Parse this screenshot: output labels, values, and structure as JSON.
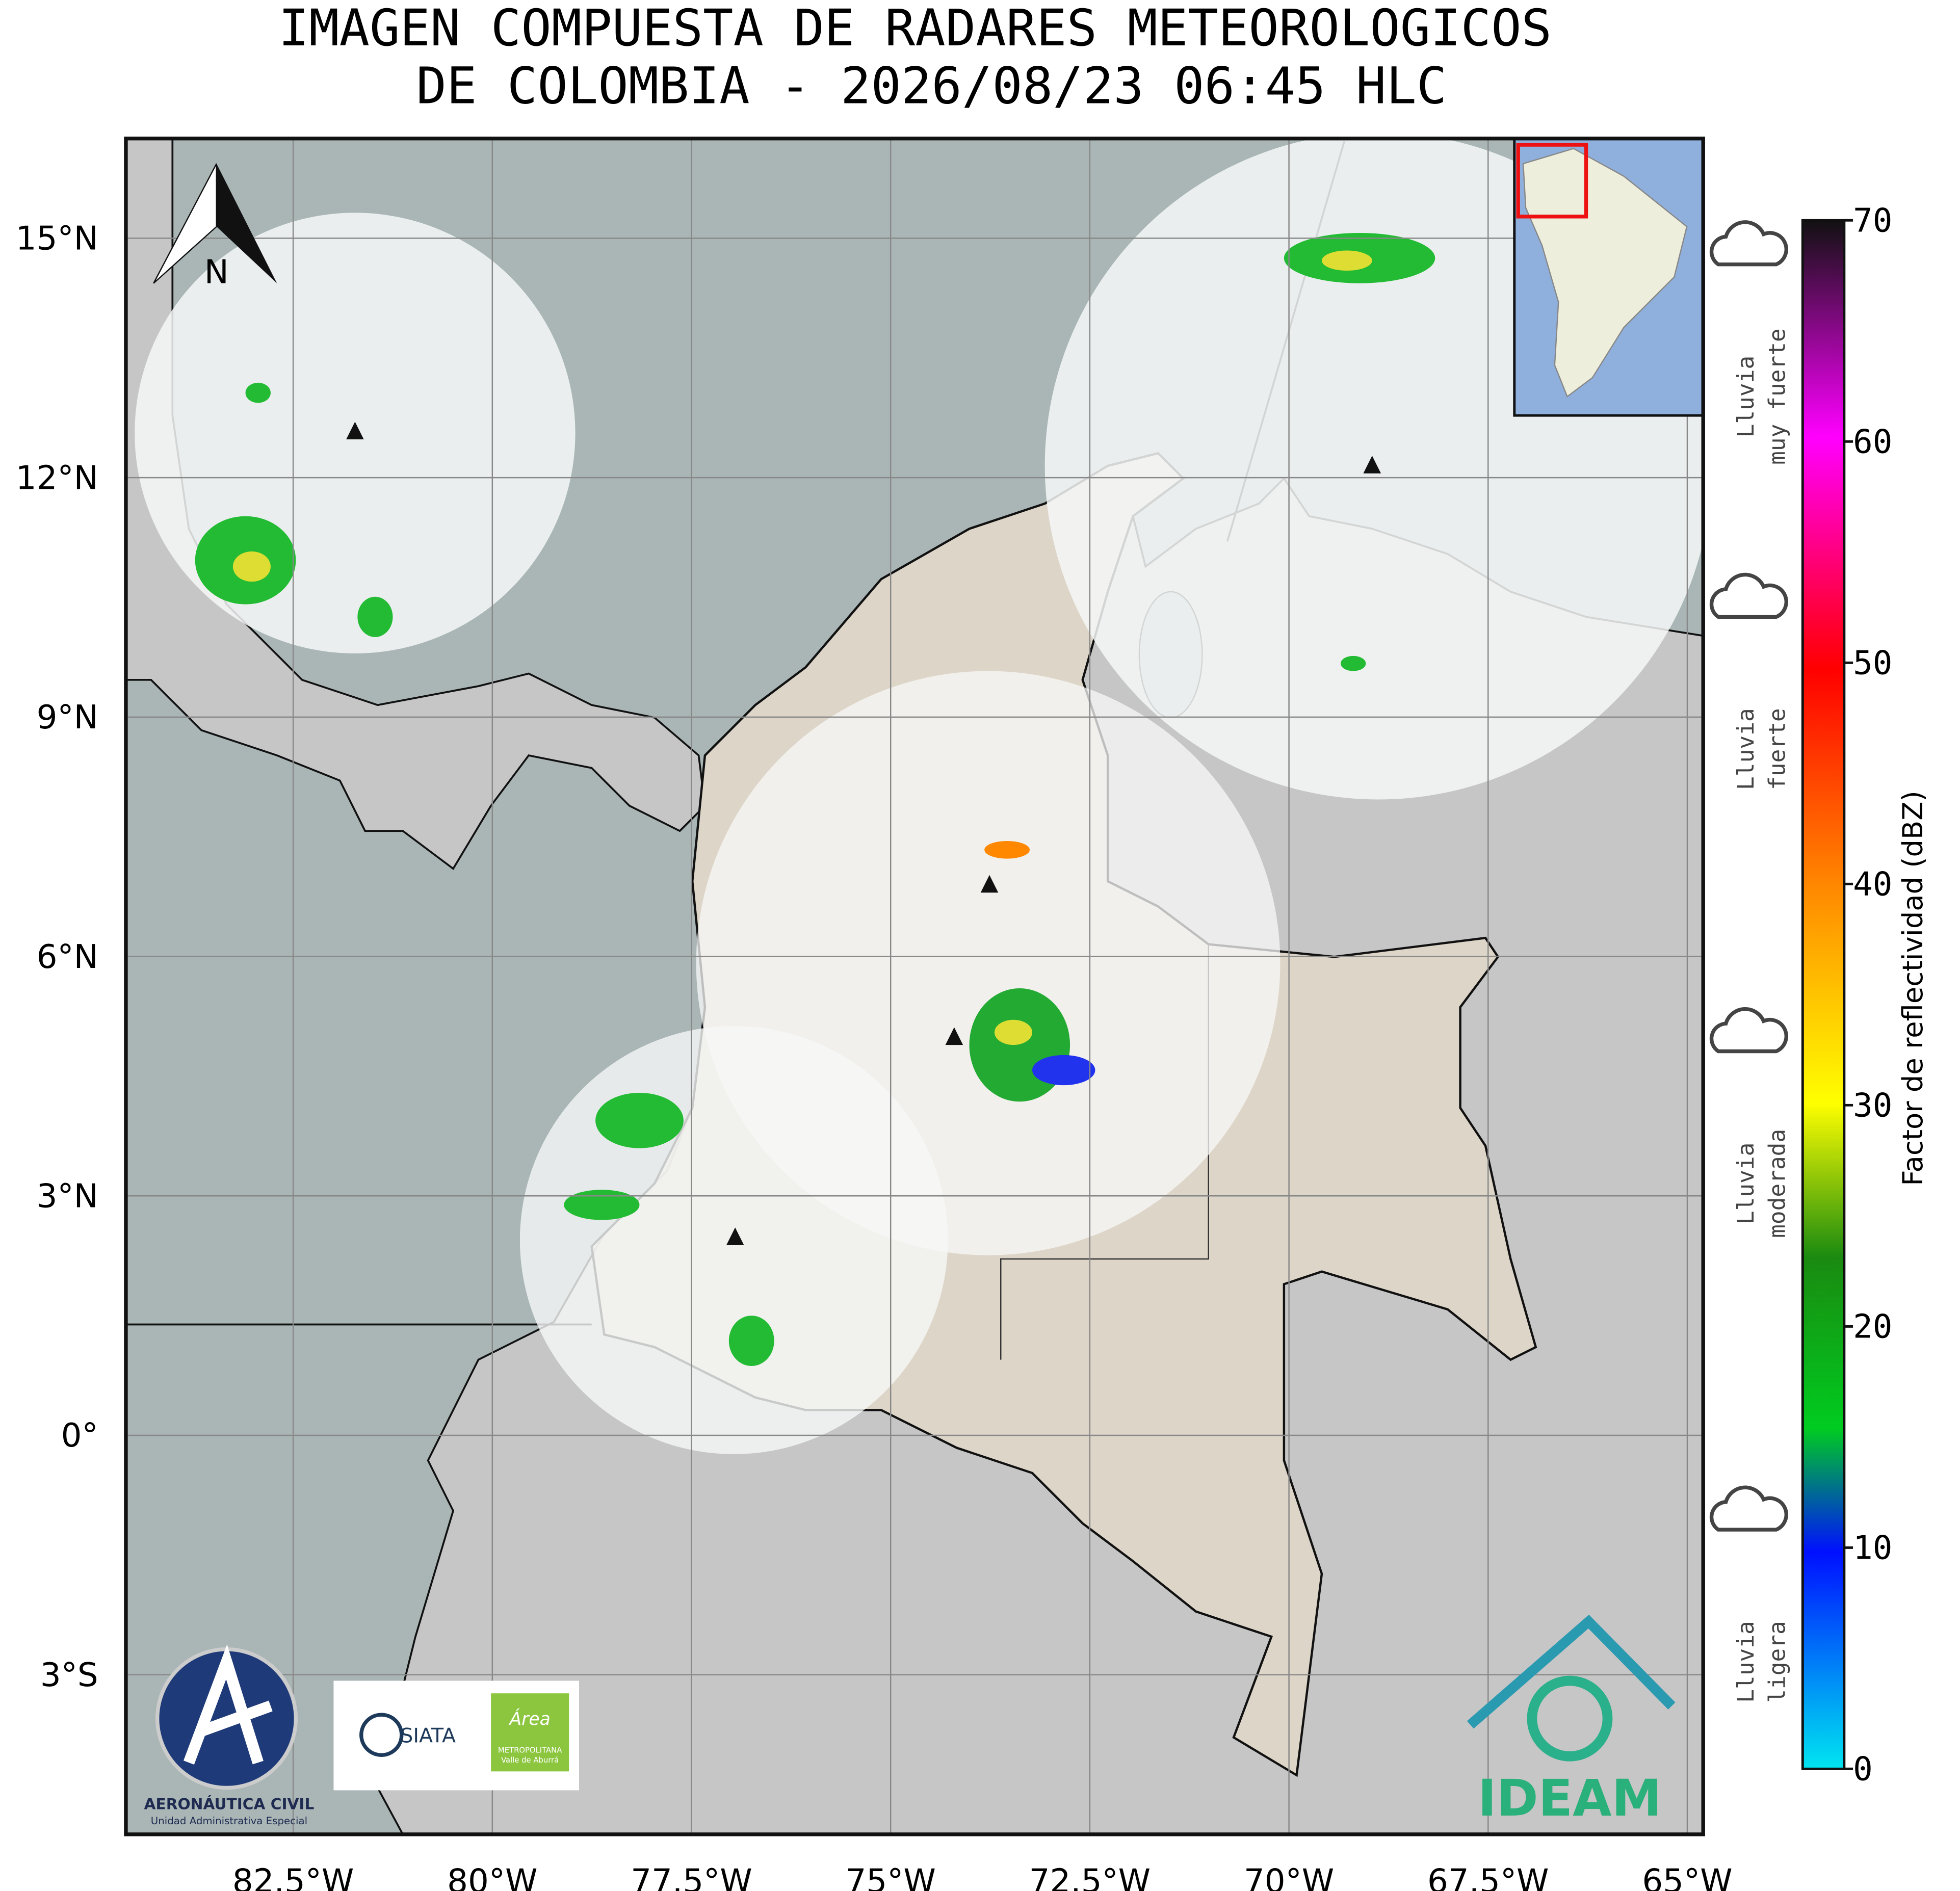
{
  "header": {
    "title_lines": [
      "IMAGEN COMPUESTA DE RADARES METEOROLOGICOS",
      "DE COLOMBIA - 2026/08/23 06:45 HLC"
    ]
  },
  "map": {
    "xlim": [
      -84.6,
      -64.8
    ],
    "ylim": [
      -5.0,
      16.25
    ],
    "xticks": [
      {
        "value": -82.5,
        "label": "82.5°W"
      },
      {
        "value": -80,
        "label": "80°W"
      },
      {
        "value": -77.5,
        "label": "77.5°W"
      },
      {
        "value": -75,
        "label": "75°W"
      },
      {
        "value": -72.5,
        "label": "72.5°W"
      },
      {
        "value": -70,
        "label": "70°W"
      },
      {
        "value": -67.5,
        "label": "67.5°W"
      },
      {
        "value": -65,
        "label": "65°W"
      }
    ],
    "yticks": [
      {
        "value": 15,
        "label": "15°N"
      },
      {
        "value": 12,
        "label": "12°N"
      },
      {
        "value": 9,
        "label": "9°N"
      },
      {
        "value": 6,
        "label": "6°N"
      },
      {
        "value": 3,
        "label": "3°N"
      },
      {
        "value": 0,
        "label": "0°"
      },
      {
        "value": -3,
        "label": "3°S"
      }
    ],
    "grid": true,
    "north_label": "N"
  },
  "colorbar": {
    "label": "Factor de reflectividad (dBZ)",
    "lim": [
      0,
      70
    ],
    "ticks": [
      0,
      10,
      20,
      30,
      40,
      50,
      60,
      70
    ],
    "intensity_labels": [
      [
        "Lluvia",
        "muy fuerte"
      ],
      [
        "Lluvia",
        "fuerte"
      ],
      [
        "Lluvia",
        "moderada"
      ],
      [
        "Lluvia",
        "ligera"
      ]
    ]
  },
  "logos": {
    "aeronautica": "AERONÁUTICA CIVIL",
    "aeronautica_sub": "Unidad Administrativa Especial",
    "siata": "SIATA",
    "area": "Área",
    "area_sub1": "METROPOLITANA",
    "area_sub2": "Valle de Aburrá",
    "ideam": "IDEAM"
  }
}
